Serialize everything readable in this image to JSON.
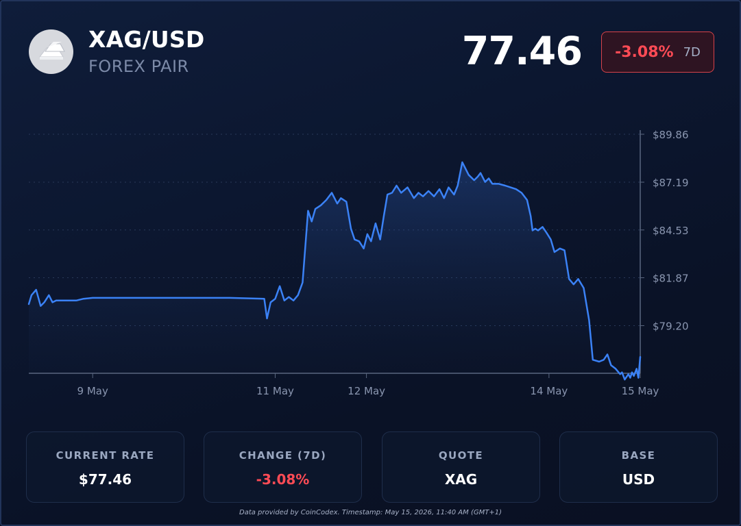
{
  "header": {
    "pair": "XAG/USD",
    "subtitle": "FOREX PAIR",
    "logo_icon": "silver-bars-icon",
    "price": "77.46",
    "change": "-3.08%",
    "period": "7D"
  },
  "stats": [
    {
      "label": "CURRENT RATE",
      "value": "$77.46",
      "negative": false
    },
    {
      "label": "CHANGE (7D)",
      "value": "-3.08%",
      "negative": true
    },
    {
      "label": "QUOTE",
      "value": "XAG",
      "negative": false
    },
    {
      "label": "BASE",
      "value": "USD",
      "negative": false
    }
  ],
  "footer": "Data provided by CoinCodex. Timestamp: May 15, 2026, 11:40 AM (GMT+1)",
  "colors": {
    "line": "#3b82f6",
    "negative": "#ff4b55",
    "background": "#0c1730"
  },
  "chart_data": {
    "type": "line",
    "title": "",
    "xlabel": "",
    "ylabel": "",
    "x_tick_labels": [
      "9 May",
      "11 May",
      "12 May",
      "14 May",
      "15 May"
    ],
    "x_tick_days": [
      9,
      11,
      12,
      14,
      15
    ],
    "y_tick_labels": [
      "$89.86",
      "$87.19",
      "$84.53",
      "$81.87",
      "$79.20"
    ],
    "y_ticks": [
      89.86,
      87.19,
      84.53,
      81.87,
      79.2
    ],
    "xlim": [
      8.3,
      15.0
    ],
    "ylim": [
      76.55,
      89.86
    ],
    "grid": "horizontal dotted",
    "y_axis_position": "right",
    "series": [
      {
        "x": [
          8.3,
          8.33,
          8.38,
          8.43,
          8.47,
          8.52,
          8.56,
          8.6,
          8.66,
          8.71,
          8.76,
          8.82,
          8.9,
          9.0,
          9.5,
          10.0,
          10.5,
          10.88,
          10.91,
          10.95,
          11.0,
          11.05,
          11.1,
          11.15,
          11.2,
          11.25,
          11.3,
          11.33,
          11.36,
          11.4,
          11.44,
          11.5,
          11.56,
          11.62,
          11.68,
          11.72,
          11.78,
          11.83,
          11.87,
          11.92,
          11.97,
          12.01,
          12.05,
          12.1,
          12.15,
          12.19,
          12.23,
          12.28,
          12.33,
          12.38,
          12.45,
          12.52,
          12.57,
          12.62,
          12.68,
          12.74,
          12.8,
          12.85,
          12.9,
          12.96,
          13.0,
          13.05,
          13.12,
          13.18,
          13.22,
          13.25,
          13.3,
          13.34,
          13.38,
          13.45,
          13.52,
          13.58,
          13.64,
          13.7,
          13.76,
          13.8,
          13.82,
          13.85,
          13.88,
          13.93,
          13.97,
          14.02,
          14.06,
          14.12,
          14.17,
          14.22,
          14.27,
          14.32,
          14.38,
          14.44,
          14.48,
          14.55,
          14.6,
          14.64,
          14.68,
          14.73,
          14.78,
          14.8,
          14.83,
          14.87,
          14.89,
          14.91,
          14.93,
          14.96,
          14.98,
          15.0
        ],
        "y": [
          80.4,
          80.9,
          81.2,
          80.3,
          80.5,
          80.9,
          80.5,
          80.6,
          80.6,
          80.6,
          80.6,
          80.6,
          80.7,
          80.75,
          80.75,
          80.75,
          80.75,
          80.7,
          79.6,
          80.5,
          80.7,
          81.4,
          80.6,
          80.8,
          80.6,
          80.9,
          81.6,
          83.6,
          85.6,
          85.0,
          85.7,
          85.9,
          86.2,
          86.6,
          86.0,
          86.3,
          86.1,
          84.6,
          84.0,
          83.9,
          83.5,
          84.3,
          83.9,
          84.9,
          84.0,
          85.3,
          86.5,
          86.6,
          87.0,
          86.6,
          86.9,
          86.3,
          86.6,
          86.4,
          86.7,
          86.4,
          86.8,
          86.3,
          86.9,
          86.5,
          87.0,
          88.3,
          87.6,
          87.3,
          87.5,
          87.7,
          87.2,
          87.4,
          87.1,
          87.1,
          87.0,
          86.9,
          86.8,
          86.6,
          86.2,
          85.3,
          84.5,
          84.6,
          84.5,
          84.7,
          84.4,
          84.0,
          83.3,
          83.5,
          83.4,
          81.8,
          81.5,
          81.8,
          81.3,
          79.5,
          77.3,
          77.2,
          77.3,
          77.6,
          77.0,
          76.8,
          76.5,
          76.6,
          76.2,
          76.5,
          76.3,
          76.6,
          76.4,
          76.8,
          76.3,
          77.46
        ]
      }
    ]
  }
}
